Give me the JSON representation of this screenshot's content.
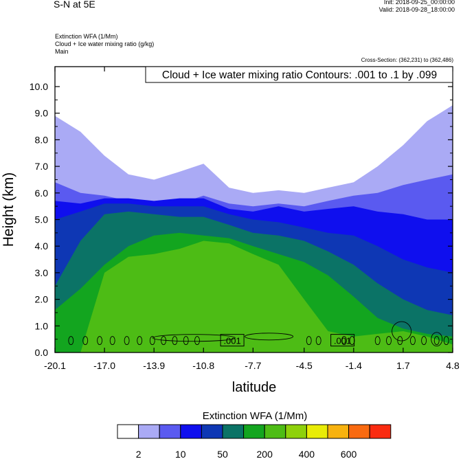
{
  "header": {
    "title": "S-N at 5E",
    "init": "Init: 2018-09-25_00:00:00",
    "valid": "Valid: 2018-09-28_18:00:00",
    "var1": "Extinction WFA   (1/Mm)",
    "var2": "Cloud + Ice water mixing ratio   (g/kg)",
    "var3": "Main",
    "cross_section": "Cross-Section: (362,231) to (362,486)"
  },
  "colors": {
    "levels": [
      "#ffffff",
      "#aaaaf5",
      "#5a5af0",
      "#0f0fee",
      "#0e37b4",
      "#0b7366",
      "#13a51f",
      "#4dbc15",
      "#8ed10b",
      "#e9ec06",
      "#f7b20f",
      "#f96a10",
      "#fa2b10"
    ],
    "contour": "#000000"
  },
  "chart_data": {
    "type": "heatmap",
    "title": "Cloud + Ice water mixing ratio Contours: .001 to .1 by .099",
    "xlabel": "latitude",
    "ylabel": "Height (km)",
    "x_ticks": [
      -20.1,
      -17.0,
      -13.9,
      -10.8,
      -7.7,
      -4.5,
      -1.4,
      1.7,
      4.8
    ],
    "x_tick_labels": [
      "-20.1",
      "-17.0",
      "-13.9",
      "-10.8",
      "-7.7",
      "-4.5",
      "-1.4",
      "1.7",
      "4.8"
    ],
    "xlim": [
      -20.1,
      4.8
    ],
    "y_ticks": [
      0,
      1,
      2,
      3,
      4,
      5,
      6,
      7,
      8,
      9,
      10
    ],
    "y_tick_labels": [
      "0.0",
      "1.0",
      "2.0",
      "3.0",
      "4.0",
      "5.0",
      "6.0",
      "7.0",
      "8.0",
      "9.0",
      "10.0"
    ],
    "ylim": [
      0,
      10.75
    ],
    "contour_labels": [
      ".001",
      ".001"
    ],
    "colorbar": {
      "title": "Extinction WFA  (1/Mm)",
      "tick_labels": [
        "2",
        "10",
        "50",
        "200",
        "400",
        "600"
      ]
    },
    "field_boundaries_km": {
      "x": [
        -20.1,
        -18.5,
        -17.0,
        -15.5,
        -13.9,
        -12.3,
        -10.8,
        -9.2,
        -7.7,
        -6.1,
        -4.5,
        -3.0,
        -1.4,
        0.1,
        1.7,
        3.2,
        4.8
      ],
      "tops": [
        [
          8.9,
          8.3,
          7.4,
          6.7,
          6.5,
          6.8,
          7.1,
          6.2,
          6.0,
          6.1,
          6.0,
          6.2,
          6.4,
          7.0,
          7.8,
          8.7,
          9.3
        ],
        [
          6.4,
          6.0,
          5.9,
          5.7,
          5.5,
          5.6,
          5.9,
          5.6,
          5.5,
          5.6,
          5.5,
          5.7,
          5.9,
          6.0,
          6.3,
          6.5,
          6.7
        ],
        [
          5.7,
          5.6,
          5.8,
          5.8,
          5.7,
          5.8,
          5.8,
          5.4,
          5.3,
          5.5,
          5.3,
          5.4,
          5.5,
          5.3,
          5.2,
          5.0,
          5.0
        ],
        [
          5.0,
          5.3,
          5.6,
          5.6,
          5.5,
          5.5,
          5.5,
          5.2,
          5.0,
          4.9,
          4.7,
          4.5,
          4.4,
          4.0,
          3.5,
          3.2,
          3.0
        ],
        [
          2.5,
          4.2,
          5.2,
          5.3,
          5.2,
          5.1,
          5.1,
          4.8,
          4.5,
          4.4,
          4.2,
          3.8,
          3.3,
          2.6,
          2.0,
          1.6,
          1.4
        ],
        [
          1.6,
          2.4,
          3.3,
          4.0,
          4.4,
          4.5,
          4.4,
          4.3,
          4.0,
          3.7,
          3.4,
          2.9,
          2.1,
          1.3,
          0.9,
          0.7,
          0.6
        ],
        [
          0.0,
          0.0,
          3.0,
          3.6,
          3.7,
          3.9,
          4.2,
          4.1,
          3.7,
          3.3,
          2.0,
          0.8,
          0.6,
          0.7,
          0.8,
          0.6,
          0.3
        ]
      ]
    }
  }
}
